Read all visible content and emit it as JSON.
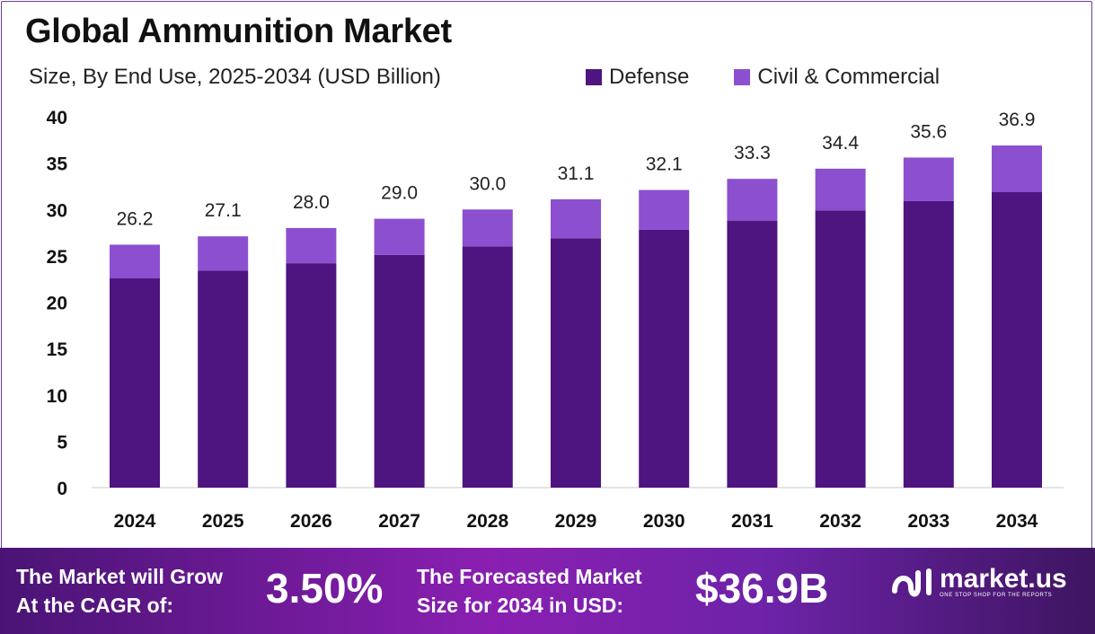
{
  "title": "Global Ammunition Market",
  "subtitle": "Size, By End Use, 2025-2034 (USD Billion)",
  "colors": {
    "defense": "#4e1480",
    "civil": "#8b4fd0",
    "footer_start": "#4a1475",
    "footer_end": "#8a1fb2"
  },
  "chart_data": {
    "type": "bar",
    "stacked": true,
    "categories": [
      "2024",
      "2025",
      "2026",
      "2027",
      "2028",
      "2029",
      "2030",
      "2031",
      "2032",
      "2033",
      "2034"
    ],
    "series": [
      {
        "name": "Defense",
        "values": [
          22.6,
          23.4,
          24.2,
          25.1,
          26.0,
          26.9,
          27.8,
          28.8,
          29.9,
          30.9,
          31.9
        ]
      },
      {
        "name": "Civil & Commercial",
        "values": [
          3.6,
          3.7,
          3.8,
          3.9,
          4.0,
          4.2,
          4.3,
          4.5,
          4.5,
          4.7,
          5.0
        ]
      }
    ],
    "totals": [
      "26.2",
      "27.1",
      "28.0",
      "29.0",
      "30.0",
      "31.1",
      "32.1",
      "33.3",
      "34.4",
      "35.6",
      "36.9"
    ],
    "yticks": [
      "0",
      "5",
      "10",
      "15",
      "20",
      "25",
      "30",
      "35",
      "40"
    ],
    "ylim": [
      0,
      40
    ],
    "grid": false,
    "legend_position": "top-right"
  },
  "footer": {
    "cagr_line1": "The Market will Grow",
    "cagr_line2": "At the CAGR of:",
    "cagr_value": "3.50%",
    "forecast_line1": "The Forecasted Market",
    "forecast_line2": "Size for 2034 in USD:",
    "forecast_value": "$36.9B",
    "brand_name": "market.us",
    "brand_tagline": "ONE STOP SHOP FOR THE REPORTS"
  }
}
